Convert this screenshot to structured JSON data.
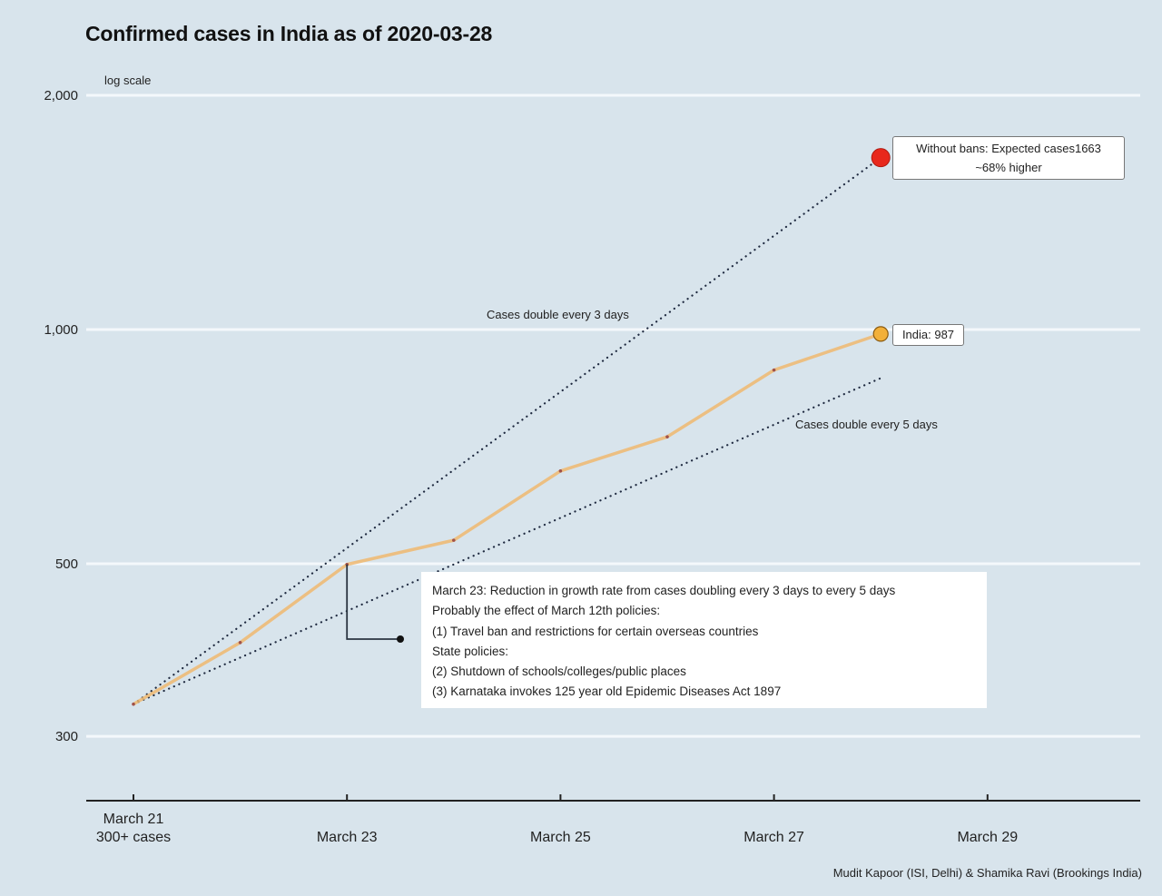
{
  "chart_data": {
    "type": "line",
    "title": "Confirmed cases in India as of 2020-03-28",
    "ylabel": "log scale",
    "xlabel": "",
    "yscale": "log",
    "ylim": [
      240,
      2000
    ],
    "yticks": [
      300,
      500,
      1000,
      2000
    ],
    "ytick_labels": [
      "300",
      "500",
      "1,000",
      "2,000"
    ],
    "xticks": [
      0,
      2,
      4,
      6,
      8
    ],
    "xtick_labels": [
      [
        "March 21",
        "300+ cases"
      ],
      [
        "March 23"
      ],
      [
        "March 25"
      ],
      [
        "March 27"
      ],
      [
        "March 29"
      ]
    ],
    "xlim": [
      -0.45,
      9.45
    ],
    "grid": "horizontal",
    "series": [
      {
        "name": "India",
        "color": "#f0b870",
        "x": [
          0,
          1,
          2,
          3,
          4,
          5,
          6,
          7
        ],
        "values": [
          330,
          396,
          499,
          536,
          658,
          728,
          887,
          987
        ],
        "end_label": "India: 987",
        "end_marker_color": "#f2b03a"
      },
      {
        "name": "Cases double every 3 days",
        "style": "dotted",
        "color": "#1f2a40",
        "x": [
          0,
          7
        ],
        "values": [
          330,
          1663
        ],
        "label": "Cases double every 3 days",
        "end_marker_color": "#e8281c"
      },
      {
        "name": "Cases double every 5 days",
        "style": "dotted",
        "color": "#1f2a40",
        "x": [
          0,
          7
        ],
        "values": [
          330,
          866
        ],
        "label": "Cases double every 5 days"
      }
    ],
    "annotations": {
      "without_bans": [
        "Without bans: Expected cases1663",
        "~68% higher"
      ],
      "india": "India: 987",
      "march23_note": [
        "March 23: Reduction in growth rate from cases doubling every 3 days to every 5 days",
        "Probably the effect of March 12th policies:",
        "(1) Travel ban and restrictions for certain overseas countries",
        "State policies:",
        "(2) Shutdown of schools/colleges/public places",
        "(3) Karnataka invokes 125 year old Epidemic Diseases Act 1897"
      ]
    },
    "credit": "Mudit Kapoor (ISI, Delhi) & Shamika Ravi (Brookings India)"
  },
  "colors": {
    "background": "#d8e4ec",
    "gridline": "#f4f8fb",
    "axis": "#222222",
    "india_line": "#f0b870",
    "india_marker": "#f2b03a",
    "without_bans_marker": "#e8281c",
    "trend_dots": "#1f2a40"
  }
}
